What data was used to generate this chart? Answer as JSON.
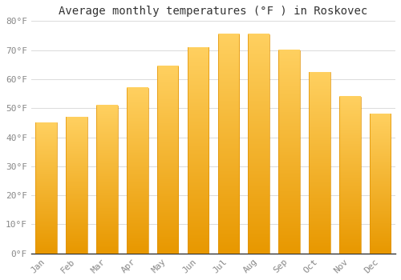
{
  "title": "Average monthly temperatures (°F ) in Roskovec",
  "months": [
    "Jan",
    "Feb",
    "Mar",
    "Apr",
    "May",
    "Jun",
    "Jul",
    "Aug",
    "Sep",
    "Oct",
    "Nov",
    "Dec"
  ],
  "values": [
    45,
    47,
    51,
    57,
    64.5,
    71,
    75.5,
    75.5,
    70,
    62.5,
    54,
    48
  ],
  "bar_color": "#FFC020",
  "bar_bottom_color": "#F5A800",
  "background_color": "#ffffff",
  "grid_color": "#dddddd",
  "ylim": [
    0,
    80
  ],
  "yticks": [
    0,
    10,
    20,
    30,
    40,
    50,
    60,
    70,
    80
  ],
  "ytick_labels": [
    "0°F",
    "10°F",
    "20°F",
    "30°F",
    "40°F",
    "50°F",
    "60°F",
    "70°F",
    "80°F"
  ],
  "tick_color": "#888888",
  "title_fontsize": 10,
  "axis_fontsize": 8,
  "spine_color": "#cccccc"
}
